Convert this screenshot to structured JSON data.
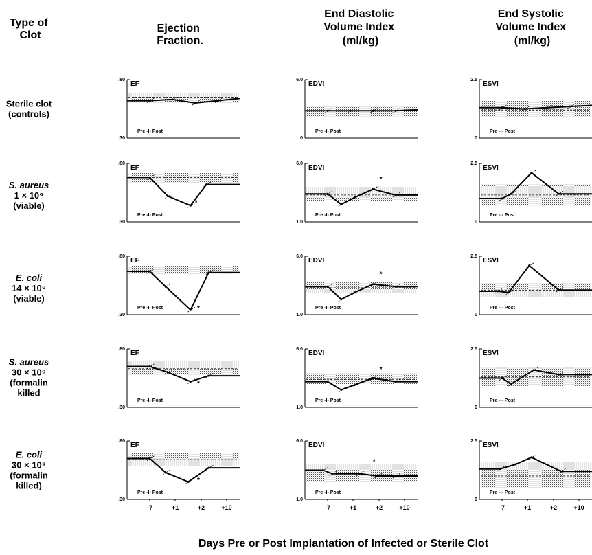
{
  "header": {
    "type_of_clot": [
      "Type of",
      "Clot"
    ],
    "columns": [
      [
        "Ejection",
        "Fraction."
      ],
      [
        "End Diastolic",
        "Volume Index",
        "(ml/kg)"
      ],
      [
        "End Systolic",
        "Volume Index",
        "(ml/kg)"
      ]
    ]
  },
  "rows": [
    {
      "lines": [
        "Sterile clot",
        "(controls)"
      ],
      "italic_lines": 0
    },
    {
      "lines": [
        "S. aureus",
        "1 × 10⁹",
        "(viable)"
      ],
      "italic_lines": 1
    },
    {
      "lines": [
        "E. coli",
        "14 × 10⁹",
        "(viable)"
      ],
      "italic_lines": 1
    },
    {
      "lines": [
        "S. aureus",
        "30 × 10⁹",
        "(formalin",
        "killed"
      ],
      "italic_lines": 1
    },
    {
      "lines": [
        "E. coli",
        "30 × 10⁹",
        "(formalin",
        "killed)"
      ],
      "italic_lines": 1
    }
  ],
  "footer": {
    "xaxis_title": "Days Pre or Post Implantation of Infected or Sterile Clot"
  },
  "chart_data": {
    "type": "line",
    "x_categories": [
      "-7",
      "+1",
      "+2",
      "+10"
    ],
    "pre_post_label": "Pre -I- Post",
    "significance_marker": "*",
    "shaded_band_meaning_shown": "normal range (stippled)",
    "panels": [
      {
        "row": 0,
        "col": 0,
        "tag": "EF",
        "y_top_label": ".80",
        "y_bottom_label": ".30",
        "ylim": [
          0.3,
          0.8
        ],
        "band": [
          0.6,
          0.68
        ],
        "ref_line": 0.65,
        "x": [
          0,
          1,
          2,
          3,
          4,
          5
        ],
        "values": [
          0.62,
          0.62,
          0.63,
          0.6,
          0.62,
          0.64
        ],
        "star": null
      },
      {
        "row": 0,
        "col": 1,
        "tag": "EDVI",
        "y_top_label": "6.0",
        "y_bottom_label": ".0",
        "ylim": [
          0,
          6.0
        ],
        "band": [
          2.2,
          3.3
        ],
        "ref_line": 2.8,
        "x": [
          0,
          1,
          2,
          3,
          4,
          5
        ],
        "values": [
          2.8,
          2.8,
          2.8,
          2.8,
          2.8,
          2.9
        ],
        "star": null
      },
      {
        "row": 0,
        "col": 2,
        "tag": "ESVI",
        "y_top_label": "2.5",
        "y_bottom_label": "0",
        "ylim": [
          0,
          2.5
        ],
        "band": [
          0.9,
          1.6
        ],
        "ref_line": 1.2,
        "x": [
          0,
          1,
          2,
          3,
          4,
          5
        ],
        "values": [
          1.3,
          1.3,
          1.25,
          1.3,
          1.35,
          1.4
        ],
        "star": null
      },
      {
        "row": 1,
        "col": 0,
        "tag": "EF",
        "y_top_label": ".80",
        "y_bottom_label": ".30",
        "ylim": [
          0.3,
          0.8
        ],
        "band": [
          0.63,
          0.72
        ],
        "ref_line": 0.68,
        "x": [
          0,
          1,
          1.8,
          2.8,
          3.5,
          5
        ],
        "values": [
          0.68,
          0.68,
          0.52,
          0.44,
          0.62,
          0.62
        ],
        "star": [
          2.9,
          0.47
        ]
      },
      {
        "row": 1,
        "col": 1,
        "tag": "EDVI",
        "y_top_label": "6.0",
        "y_bottom_label": "1.0",
        "ylim": [
          1.0,
          6.0
        ],
        "band": [
          2.8,
          4.0
        ],
        "ref_line": 3.3,
        "x": [
          0,
          1,
          1.6,
          2.2,
          3.0,
          4,
          5
        ],
        "values": [
          3.4,
          3.4,
          2.5,
          3.1,
          3.8,
          3.3,
          3.3
        ],
        "star": [
          3.2,
          4.7
        ]
      },
      {
        "row": 1,
        "col": 2,
        "tag": "ESVI",
        "y_top_label": "2.5",
        "y_bottom_label": "0",
        "ylim": [
          0,
          2.5
        ],
        "band": [
          0.7,
          1.6
        ],
        "ref_line": 1.15,
        "x": [
          0,
          1,
          1.4,
          2.3,
          3.5,
          5
        ],
        "values": [
          1.0,
          1.0,
          1.2,
          2.1,
          1.2,
          1.2
        ],
        "star": null
      },
      {
        "row": 2,
        "col": 0,
        "tag": "EF",
        "y_top_label": ".80",
        "y_bottom_label": ".30",
        "ylim": [
          0.3,
          0.8
        ],
        "band": [
          0.65,
          0.72
        ],
        "ref_line": 0.69,
        "x": [
          0,
          1,
          1.7,
          2.8,
          3.6,
          5
        ],
        "values": [
          0.67,
          0.67,
          0.54,
          0.34,
          0.66,
          0.66
        ],
        "star": [
          3.0,
          0.36
        ]
      },
      {
        "row": 2,
        "col": 1,
        "tag": "EDVI",
        "y_top_label": "6.0",
        "y_bottom_label": "1.0",
        "ylim": [
          1.0,
          6.0
        ],
        "band": [
          2.9,
          3.8
        ],
        "ref_line": 3.3,
        "x": [
          0,
          1,
          1.6,
          2.2,
          3.0,
          4,
          5
        ],
        "values": [
          3.4,
          3.4,
          2.3,
          2.9,
          3.6,
          3.4,
          3.4
        ],
        "star": [
          3.2,
          4.5
        ]
      },
      {
        "row": 2,
        "col": 2,
        "tag": "ESVI",
        "y_top_label": "2.5",
        "y_bottom_label": "0",
        "ylim": [
          0,
          2.5
        ],
        "band": [
          0.75,
          1.35
        ],
        "ref_line": 1.05,
        "x": [
          0,
          0.8,
          1.3,
          2.2,
          3.5,
          5
        ],
        "values": [
          1.0,
          1.0,
          0.95,
          2.1,
          1.05,
          1.05
        ],
        "star": null
      },
      {
        "row": 3,
        "col": 0,
        "tag": "EF",
        "y_top_label": ".80",
        "y_bottom_label": ".30",
        "ylim": [
          0.3,
          0.8
        ],
        "band": [
          0.58,
          0.7
        ],
        "ref_line": 0.63,
        "x": [
          0,
          1,
          1.8,
          2.8,
          3.6,
          5
        ],
        "values": [
          0.65,
          0.65,
          0.6,
          0.52,
          0.57,
          0.57
        ],
        "star": [
          3.0,
          0.51
        ]
      },
      {
        "row": 3,
        "col": 1,
        "tag": "EDVI",
        "y_top_label": "6.0",
        "y_bottom_label": "1.0",
        "ylim": [
          1.0,
          6.0
        ],
        "band": [
          3.0,
          3.9
        ],
        "ref_line": 3.4,
        "x": [
          0,
          1,
          1.6,
          2.3,
          3.0,
          4,
          5
        ],
        "values": [
          3.2,
          3.2,
          2.5,
          3.0,
          3.5,
          3.2,
          3.2
        ],
        "star": [
          3.2,
          4.3
        ]
      },
      {
        "row": 3,
        "col": 2,
        "tag": "ESVI",
        "y_top_label": "2.5",
        "y_bottom_label": "0",
        "ylim": [
          0,
          2.5
        ],
        "band": [
          0.9,
          1.7
        ],
        "ref_line": 1.3,
        "x": [
          0,
          1,
          1.4,
          2.4,
          3.5,
          5
        ],
        "values": [
          1.25,
          1.25,
          1.0,
          1.6,
          1.4,
          1.4
        ],
        "star": null
      },
      {
        "row": 4,
        "col": 0,
        "tag": "EF",
        "y_top_label": ".80",
        "y_bottom_label": ".30",
        "ylim": [
          0.3,
          0.8
        ],
        "band": [
          0.58,
          0.7
        ],
        "ref_line": 0.64,
        "x": [
          0,
          1,
          1.7,
          2.7,
          3.6,
          5
        ],
        "values": [
          0.65,
          0.65,
          0.53,
          0.45,
          0.57,
          0.57
        ],
        "star": [
          3.0,
          0.47
        ]
      },
      {
        "row": 4,
        "col": 1,
        "tag": "EDVI",
        "y_top_label": "6.0",
        "y_bottom_label": "1.0",
        "ylim": [
          1.0,
          6.0
        ],
        "band": [
          2.5,
          4.0
        ],
        "ref_line": 3.1,
        "x": [
          0,
          0.8,
          1.2,
          2.4,
          3.2,
          4,
          5
        ],
        "values": [
          3.5,
          3.5,
          3.2,
          3.2,
          3.0,
          3.0,
          3.0
        ],
        "star": [
          2.9,
          4.3
        ]
      },
      {
        "row": 4,
        "col": 2,
        "tag": "ESVI",
        "y_top_label": "2.5",
        "y_bottom_label": "0",
        "ylim": [
          0,
          2.5
        ],
        "band": [
          0.5,
          1.6
        ],
        "ref_line": 1.0,
        "x": [
          0,
          0.9,
          1.6,
          2.3,
          3.6,
          5
        ],
        "values": [
          1.3,
          1.3,
          1.5,
          1.8,
          1.2,
          1.2
        ],
        "star": null
      }
    ]
  }
}
